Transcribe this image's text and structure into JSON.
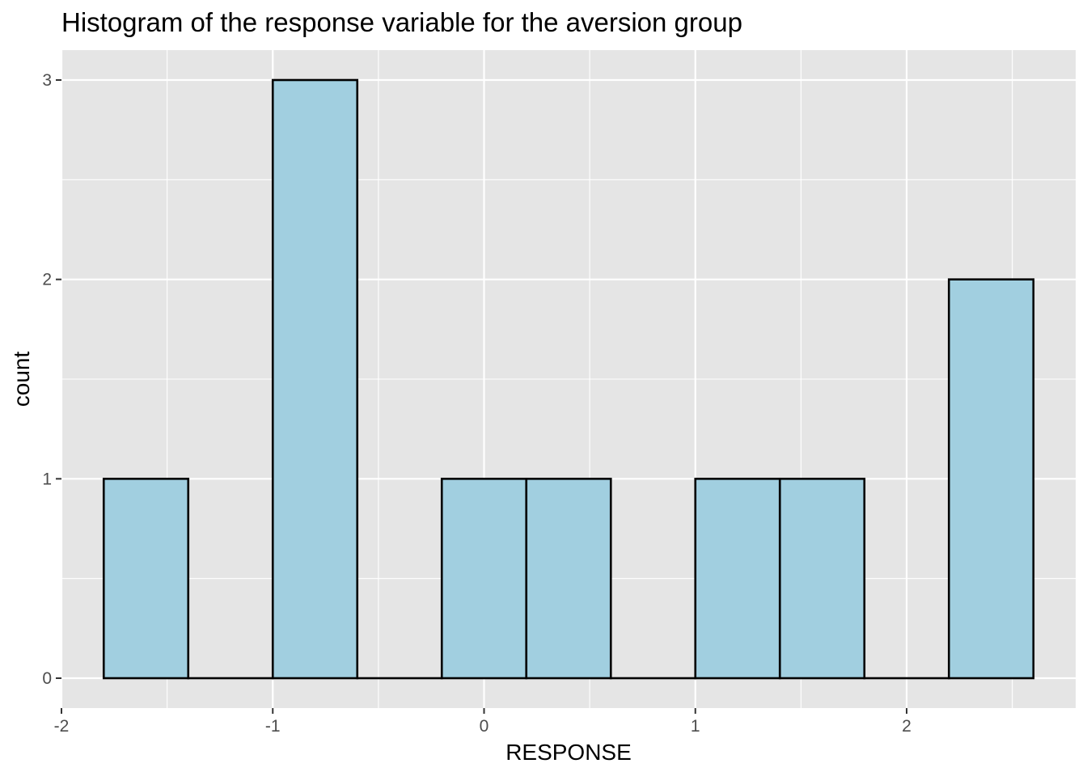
{
  "chart_data": {
    "type": "bar",
    "subtype": "histogram",
    "title": "Histogram of the response variable for the aversion group",
    "xlabel": "RESPONSE",
    "ylabel": "count",
    "bins": [
      {
        "x0": -1.8,
        "x1": -1.4,
        "count": 1
      },
      {
        "x0": -1.4,
        "x1": -1.0,
        "count": 0
      },
      {
        "x0": -1.0,
        "x1": -0.6,
        "count": 3
      },
      {
        "x0": -0.6,
        "x1": -0.2,
        "count": 0
      },
      {
        "x0": -0.2,
        "x1": 0.2,
        "count": 1
      },
      {
        "x0": 0.2,
        "x1": 0.6,
        "count": 1
      },
      {
        "x0": 0.6,
        "x1": 1.0,
        "count": 0
      },
      {
        "x0": 1.0,
        "x1": 1.4,
        "count": 1
      },
      {
        "x0": 1.4,
        "x1": 1.8,
        "count": 1
      },
      {
        "x0": 1.8,
        "x1": 2.2,
        "count": 0
      },
      {
        "x0": 2.2,
        "x1": 2.6,
        "count": 2
      }
    ],
    "xlim": [
      -2.0,
      2.8
    ],
    "ylim": [
      -0.15,
      3.15
    ],
    "x_ticks": [
      -2,
      -1,
      0,
      1,
      2
    ],
    "x_tick_labels": [
      "-2",
      "-1",
      "0",
      "1",
      "2"
    ],
    "y_ticks": [
      0,
      1,
      2,
      3
    ],
    "y_tick_labels": [
      "0",
      "1",
      "2",
      "3"
    ],
    "grid": true,
    "colors": {
      "panel_background": "#e5e5e5",
      "grid_major": "#ffffff",
      "bar_fill": "#a1cfe0",
      "bar_outline": "#000000",
      "tick_label": "#4d4d4d"
    }
  }
}
